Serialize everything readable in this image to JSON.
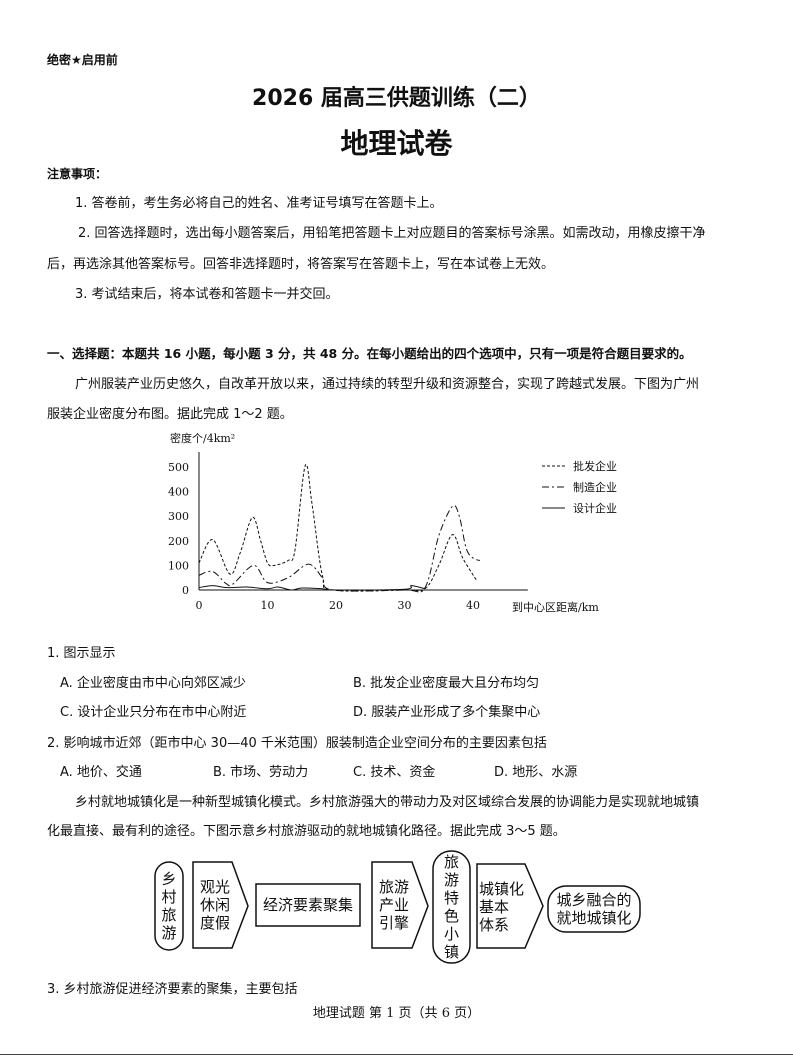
{
  "header": {
    "secret": "绝密★启用前",
    "title": "2026 届高三供题训练（二）",
    "subject": "地理试卷"
  },
  "notice": {
    "heading": "注意事项：",
    "lines": [
      "1. 答卷前，考生务必将自己的姓名、准考证号填写在答题卡上。",
      "2. 回答选择题时，选出每小题答案后，用铅笔把答题卡上对应题目的答案标号涂黑。如需改动，用橡皮擦干净",
      "后，再选涂其他答案标号。回答非选择题时，将答案写在答题卡上，写在本试卷上无效。",
      "3. 考试结束后，将本试卷和答题卡一并交回。"
    ]
  },
  "section1": {
    "heading": "一、选择题：本题共 16 小题，每小题 3 分，共 48 分。在每小题给出的四个选项中，只有一项是符合题目要求的。",
    "intro1": [
      "广州服装产业历史悠久，自改革开放以来，通过持续的转型升级和资源整合，实现了跨越式发展。下图为广州",
      "服装企业密度分布图。据此完成 1～2 题。"
    ],
    "q1": {
      "stem": "1. 图示显示",
      "options": [
        "A. 企业密度由市中心向郊区减少",
        "B. 批发企业密度最大且分布均匀",
        "C. 设计企业只分布在市中心附近",
        "D. 服装产业形成了多个集聚中心"
      ]
    },
    "q2": {
      "stem": "2. 影响城市近郊（距市中心 30—40 千米范围）服装制造企业空间分布的主要因素包括",
      "options": [
        "A. 地价、交通",
        "B. 市场、劳动力",
        "C. 技术、资金",
        "D. 地形、水源"
      ]
    },
    "intro2": [
      "乡村就地城镇化是一种新型城镇化模式。乡村旅游强大的带动力及对区域综合发展的协调能力是实现就地城镇",
      "化最直接、最有利的途径。下图示意乡村旅游驱动的就地城镇化路径。据此完成 3～5 题。"
    ],
    "q3": {
      "stem": "3. 乡村旅游促进经济要素的聚集，主要包括"
    }
  },
  "chart_data": {
    "type": "line",
    "ylabel": "密度个/4km²",
    "xlabel": "到中心区距离/km",
    "xlim": [
      0,
      48
    ],
    "ylim": [
      0,
      550
    ],
    "xticks": [
      0,
      10,
      20,
      30,
      40
    ],
    "yticks": [
      0,
      100,
      200,
      300,
      400,
      500
    ],
    "grid": false,
    "legend_position": "right",
    "series": [
      {
        "name": "批发企业",
        "style": "dashed",
        "x": [
          0,
          2,
          4.5,
          6,
          7.8,
          9,
          10,
          11,
          13,
          14,
          15.5,
          16.5,
          18,
          19.5,
          30,
          33,
          35,
          37,
          38.5,
          40.5
        ],
        "y": [
          110,
          205,
          65,
          150,
          295,
          200,
          110,
          100,
          120,
          160,
          505,
          350,
          60,
          0,
          0,
          5,
          100,
          225,
          130,
          40
        ]
      },
      {
        "name": "制造企业",
        "style": "dashdot",
        "x": [
          0,
          2,
          4,
          5,
          8,
          10,
          13,
          16,
          18,
          19.5,
          30,
          33,
          35,
          37,
          38,
          39,
          40,
          41
        ],
        "y": [
          60,
          75,
          25,
          25,
          100,
          30,
          50,
          105,
          50,
          0,
          0,
          10,
          220,
          340,
          300,
          170,
          130,
          120
        ]
      },
      {
        "name": "设计企业",
        "style": "solid",
        "x": [
          0,
          2,
          4,
          7,
          10,
          11.5,
          13.5,
          15,
          18,
          20,
          30,
          31,
          33
        ],
        "y": [
          10,
          18,
          10,
          12,
          5,
          12,
          0,
          8,
          5,
          0,
          3,
          18,
          5
        ]
      }
    ]
  },
  "diagram": {
    "nodes": [
      "乡\n村\n旅\n游",
      "观光\n休闲\n度假",
      "经济要素聚集",
      "旅游\n产业\n引擎",
      "旅\n游\n特\n色\n小\n镇",
      "城镇化\n基本\n体系",
      "城乡融合的\n就地城镇化"
    ]
  },
  "footer": "地理试题 第 1 页（共 6 页）"
}
